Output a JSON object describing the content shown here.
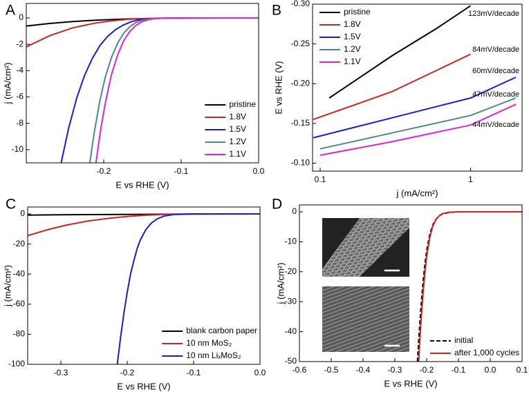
{
  "chart_data": [
    {
      "type": "line",
      "panel_label": "A",
      "x_label": "E vs RHE (V)",
      "y_label": "j (mA/cm²)",
      "xlim": [
        -0.3,
        0
      ],
      "xticks": [
        -0.2,
        -0.1,
        {
          "value": 0,
          "label": "0.0"
        }
      ],
      "ylim": [
        -11,
        1.1
      ],
      "yticks": [
        0,
        -2,
        -4,
        -6,
        -8,
        -10
      ],
      "legend": "lower right",
      "series": [
        {
          "name": "pristine",
          "color": "#000000",
          "x": [
            -0.3,
            -0.27,
            -0.24,
            -0.21,
            -0.18,
            -0.15,
            -0.12,
            -0.09,
            -0.05,
            0
          ],
          "values": [
            -0.62,
            -0.42,
            -0.28,
            -0.17,
            -0.1,
            -0.05,
            -0.02,
            -0.01,
            0,
            0
          ]
        },
        {
          "name": "1.8V",
          "color": "#d42020",
          "x": [
            -0.3,
            -0.27,
            -0.24,
            -0.21,
            -0.19,
            -0.17,
            -0.15,
            -0.13,
            -0.1,
            -0.05,
            0
          ],
          "values": [
            -2.2,
            -1.35,
            -0.75,
            -0.38,
            -0.22,
            -0.11,
            -0.05,
            -0.02,
            0,
            0,
            0
          ]
        },
        {
          "name": "1.5V",
          "color": "#1a1adb",
          "x": [
            -0.255,
            -0.245,
            -0.235,
            -0.225,
            -0.215,
            -0.205,
            -0.195,
            -0.185,
            -0.175,
            -0.165,
            -0.155,
            -0.14,
            -0.12,
            -0.1,
            0
          ],
          "values": [
            -11,
            -8.3,
            -6.1,
            -4.4,
            -3.1,
            -2.1,
            -1.4,
            -0.9,
            -0.55,
            -0.3,
            -0.15,
            -0.05,
            -0.01,
            0,
            0
          ]
        },
        {
          "name": "1.2V",
          "color": "#4a8a80",
          "x": [
            -0.218,
            -0.212,
            -0.205,
            -0.198,
            -0.19,
            -0.182,
            -0.174,
            -0.166,
            -0.158,
            -0.15,
            -0.14,
            -0.12,
            -0.1,
            0
          ],
          "values": [
            -11,
            -8.6,
            -6.3,
            -4.5,
            -3.0,
            -1.9,
            -1.15,
            -0.65,
            -0.35,
            -0.17,
            -0.06,
            -0.01,
            0,
            0
          ]
        },
        {
          "name": "1.1V",
          "color": "#e020e0",
          "x": [
            -0.21,
            -0.204,
            -0.198,
            -0.19,
            -0.182,
            -0.174,
            -0.166,
            -0.158,
            -0.15,
            -0.14,
            -0.125,
            -0.1,
            0
          ],
          "values": [
            -11,
            -8.5,
            -6.5,
            -4.3,
            -2.8,
            -1.7,
            -1.0,
            -0.55,
            -0.28,
            -0.1,
            -0.02,
            0,
            0
          ]
        }
      ]
    },
    {
      "type": "line",
      "panel_label": "B",
      "x_label": "j (mA/cm²)",
      "y_label": "E vs RHE (V)",
      "xscale": "log",
      "xlim": [
        0.089,
        2.2
      ],
      "xticks": [
        0.1,
        1
      ],
      "ylim": [
        -0.09,
        -0.3
      ],
      "yticks": [
        {
          "value": -0.3,
          "label": "-0.30"
        },
        -0.25,
        {
          "value": -0.2,
          "label": "-0.20"
        },
        -0.15,
        {
          "value": -0.1,
          "label": "-0.10"
        }
      ],
      "legend": "upper left",
      "series": [
        {
          "name": "pristine",
          "color": "#000000",
          "annotation": "123mV/decade",
          "x": [
            0.115,
            0.3,
            0.6,
            1.0
          ],
          "values": [
            -0.182,
            -0.235,
            -0.27,
            -0.298
          ]
        },
        {
          "name": "1.8V",
          "color": "#d42020",
          "annotation": "84mV/decade",
          "x": [
            0.09,
            0.3,
            1.0
          ],
          "values": [
            -0.155,
            -0.19,
            -0.237
          ]
        },
        {
          "name": "1.5V",
          "color": "#1a1adb",
          "annotation": "60mV/decade",
          "x": [
            0.09,
            0.3,
            1.0,
            2.0
          ],
          "values": [
            -0.132,
            -0.157,
            -0.182,
            -0.208
          ]
        },
        {
          "name": "1.2V",
          "color": "#4a8a80",
          "annotation": "47mV/decade",
          "x": [
            0.1,
            0.3,
            1.0,
            2.0
          ],
          "values": [
            -0.118,
            -0.138,
            -0.16,
            -0.182
          ]
        },
        {
          "name": "1.1V",
          "color": "#e020e0",
          "annotation": "44mV/decade",
          "x": [
            0.1,
            0.3,
            1.0,
            2.0
          ],
          "values": [
            -0.11,
            -0.127,
            -0.148,
            -0.174
          ]
        }
      ]
    },
    {
      "type": "line",
      "panel_label": "C",
      "x_label": "E vs RHE (V)",
      "y_label": "j (mA/cm²)",
      "xlim": [
        -0.35,
        0
      ],
      "xticks": [
        -0.3,
        -0.2,
        -0.1,
        {
          "value": 0,
          "label": "0.0"
        }
      ],
      "ylim": [
        -100,
        4.6
      ],
      "yticks": [
        0,
        -20,
        -40,
        -60,
        -80,
        -100
      ],
      "legend": "lower right",
      "series": [
        {
          "name": "blank carbon paper",
          "color": "#000000",
          "x": [
            -0.35,
            -0.3,
            -0.2,
            -0.1,
            0
          ],
          "values": [
            -0.8,
            -0.6,
            -0.3,
            -0.1,
            0
          ]
        },
        {
          "name": "10 nm MoS₂",
          "color": "#d42020",
          "x": [
            -0.35,
            -0.32,
            -0.29,
            -0.26,
            -0.23,
            -0.2,
            -0.17,
            -0.14,
            -0.1,
            0
          ],
          "values": [
            -14.5,
            -10.5,
            -7.3,
            -4.8,
            -3,
            -1.7,
            -0.8,
            -0.3,
            -0.05,
            0
          ]
        },
        {
          "name": "10 nm LiₓMoS₂",
          "color": "#1a1adb",
          "x": [
            -0.215,
            -0.21,
            -0.205,
            -0.2,
            -0.195,
            -0.19,
            -0.185,
            -0.18,
            -0.172,
            -0.164,
            -0.155,
            -0.145,
            -0.13,
            -0.1,
            0
          ],
          "values": [
            -100,
            -82,
            -66,
            -52,
            -40,
            -31,
            -23,
            -17,
            -10.5,
            -6.2,
            -3.3,
            -1.5,
            -0.4,
            0,
            0
          ]
        }
      ]
    },
    {
      "type": "line",
      "panel_label": "D",
      "x_label": "E vs RHE (V)",
      "y_label": "j (mA/cm²)",
      "xlim": [
        -0.6,
        0.1
      ],
      "xticks": [
        -0.6,
        -0.5,
        -0.4,
        -0.3,
        -0.2,
        -0.1,
        {
          "value": 0,
          "label": "0.0"
        },
        0.1
      ],
      "ylim": [
        -50,
        2.3
      ],
      "yticks": [
        0,
        -10,
        -20,
        -30,
        -40,
        -50
      ],
      "legend": "lower right",
      "series": [
        {
          "name": "initial",
          "color": "#000000",
          "linestyle": "dashed",
          "x": [
            -0.229,
            -0.225,
            -0.22,
            -0.215,
            -0.21,
            -0.205,
            -0.2,
            -0.19,
            -0.18,
            -0.17,
            -0.16,
            -0.15,
            -0.13,
            -0.1,
            0,
            0.1
          ],
          "values": [
            -50,
            -43,
            -35,
            -28,
            -22,
            -17,
            -13,
            -7.5,
            -4.2,
            -2.4,
            -1.3,
            -0.7,
            -0.2,
            0,
            0,
            0
          ]
        },
        {
          "name": "after 1,000 cycles",
          "color": "#d42020",
          "x": [
            -0.225,
            -0.222,
            -0.218,
            -0.214,
            -0.21,
            -0.205,
            -0.2,
            -0.19,
            -0.18,
            -0.17,
            -0.16,
            -0.15,
            -0.13,
            -0.1,
            0,
            0.1
          ],
          "values": [
            -50,
            -44,
            -37,
            -31,
            -25.5,
            -20,
            -15,
            -8.5,
            -4.6,
            -2.5,
            -1.3,
            -0.6,
            -0.15,
            0,
            0,
            0
          ]
        }
      ]
    }
  ]
}
